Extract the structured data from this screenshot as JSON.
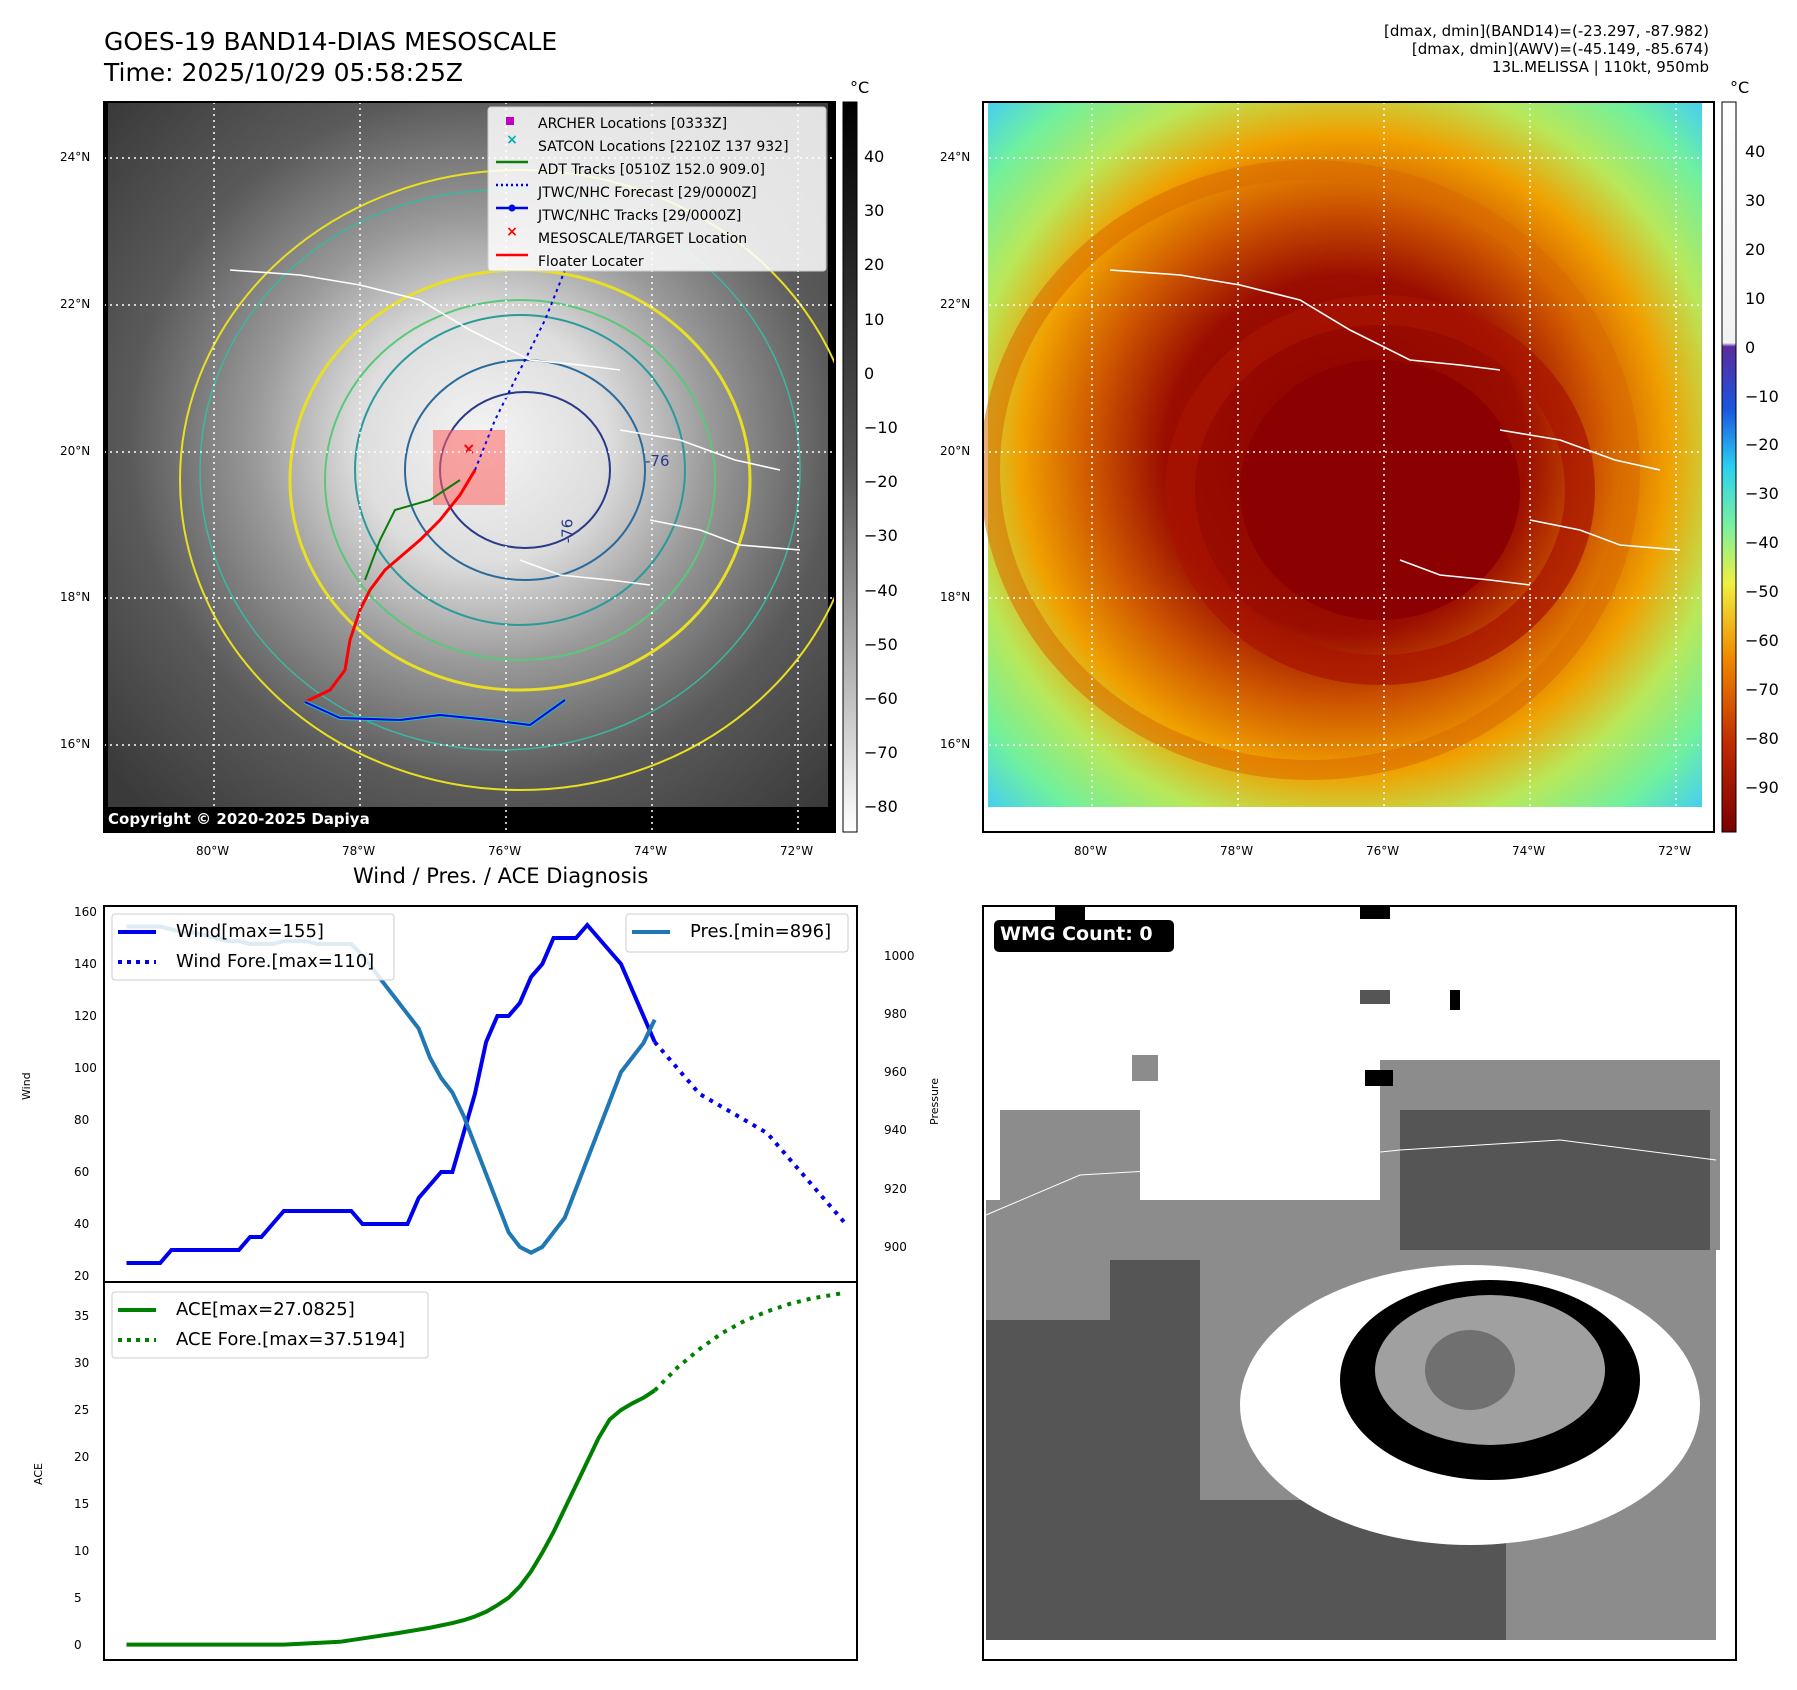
{
  "header": {
    "title_line1": "GOES-19 BAND14-DIAS MESOSCALE",
    "title_line2": "Time: 2025/10/29 05:58:25Z",
    "info_line1": "[dmax, dmin](BAND14)=(-23.297, -87.982)",
    "info_line2": "[dmax, dmin](AWV)=(-45.149, -85.674)",
    "info_line3": "13L.MELISSA | 110kt, 950mb"
  },
  "map": {
    "lat_labels": [
      "24°N",
      "22°N",
      "20°N",
      "18°N",
      "16°N"
    ],
    "lon_labels": [
      "80°W",
      "78°W",
      "76°W",
      "74°W",
      "72°W"
    ],
    "copyright": "Copyright © 2020-2025 Dapiya",
    "unit": "°C",
    "legend": [
      {
        "label": "ARCHER Locations [0333Z]",
        "marker": "square",
        "color": "#c000c0"
      },
      {
        "label": "SATCON Locations [2210Z 137 932]",
        "marker": "x",
        "color": "#00b0b0"
      },
      {
        "label": "ADT Tracks [0510Z 152.0 909.0]",
        "marker": "line",
        "color": "#0a7d0a"
      },
      {
        "label": "JTWC/NHC Forecast [29/0000Z]",
        "marker": "dotted",
        "color": "#0000ee"
      },
      {
        "label": "JTWC/NHC Tracks [29/0000Z]",
        "marker": "line-dot",
        "color": "#0000ee"
      },
      {
        "label": "MESOSCALE/TARGET Location",
        "marker": "x",
        "color": "#ff0000"
      },
      {
        "label": "Floater Locater",
        "marker": "line",
        "color": "#ff0000"
      }
    ],
    "gray_colorbar_ticks": [
      "40",
      "30",
      "20",
      "10",
      "0",
      "−10",
      "−20",
      "−30",
      "−40",
      "−50",
      "−60",
      "−70",
      "−80"
    ],
    "color_colorbar_ticks": [
      "40",
      "30",
      "20",
      "10",
      "0",
      "−10",
      "−20",
      "−30",
      "−40",
      "−50",
      "−60",
      "−70",
      "−80",
      "−90"
    ],
    "contour_labels": [
      "-76",
      "-76"
    ]
  },
  "diagnosis": {
    "title": "Wind / Pres. / ACE Diagnosis",
    "wmg_label": "WMG Count: 0",
    "colors": {
      "wind": "#0000ee",
      "pres": "#1f77b4",
      "ace": "#008000"
    }
  },
  "chart_data": [
    {
      "type": "line",
      "title": "Wind / Pres. / ACE Diagnosis",
      "ylabel": "Wind",
      "y2label": "Pressure",
      "ylim": [
        20,
        160
      ],
      "y2lim": [
        890,
        1015
      ],
      "xlim": [
        -1,
        66
      ],
      "yticks": [
        "160",
        "140",
        "120",
        "100",
        "80",
        "60",
        "40",
        "20"
      ],
      "y2ticks": [
        "1000",
        "980",
        "960",
        "940",
        "920",
        "900"
      ],
      "series": [
        {
          "name": "Wind[max=155]",
          "axis": "left",
          "style": "solid",
          "x": [
            1,
            4,
            5,
            7,
            8,
            9,
            10,
            11,
            12,
            13,
            14,
            15,
            16,
            17,
            18,
            19,
            20,
            21,
            22,
            23,
            24,
            25,
            26,
            27,
            28,
            29,
            30,
            31,
            32,
            33,
            34,
            35,
            36,
            37,
            38,
            39,
            40,
            41,
            42,
            43,
            44,
            45,
            46,
            47,
            48
          ],
          "values": [
            25,
            25,
            30,
            30,
            30,
            30,
            30,
            30,
            35,
            35,
            40,
            45,
            45,
            45,
            45,
            45,
            45,
            45,
            40,
            40,
            40,
            40,
            40,
            50,
            55,
            60,
            60,
            75,
            90,
            110,
            120,
            120,
            125,
            135,
            140,
            150,
            150,
            150,
            155,
            150,
            145,
            140,
            130,
            120,
            110
          ]
        },
        {
          "name": "Wind Fore.[max=110]",
          "axis": "left",
          "style": "dotted",
          "x": [
            48,
            50,
            52,
            54,
            56,
            58,
            60,
            62,
            64,
            65
          ],
          "values": [
            110,
            100,
            90,
            85,
            80,
            75,
            65,
            55,
            45,
            40
          ]
        },
        {
          "name": "Pres.[min=896]",
          "axis": "right",
          "style": "solid",
          "x": [
            1,
            2,
            3,
            4,
            5,
            6,
            7,
            8,
            9,
            10,
            11,
            12,
            13,
            14,
            15,
            16,
            17,
            18,
            19,
            20,
            21,
            22,
            23,
            24,
            25,
            26,
            27,
            28,
            29,
            30,
            31,
            32,
            33,
            34,
            35,
            36,
            37,
            38,
            39,
            40,
            41,
            42,
            43,
            44,
            45,
            46,
            47,
            48
          ],
          "values": [
            1010,
            1010,
            1010,
            1010,
            1009,
            1008,
            1008,
            1007,
            1006,
            1005,
            1005,
            1004,
            1004,
            1004,
            1005,
            1005,
            1005,
            1004,
            1004,
            1004,
            1004,
            1000,
            995,
            990,
            985,
            980,
            975,
            965,
            958,
            953,
            945,
            935,
            925,
            915,
            905,
            900,
            898,
            900,
            905,
            910,
            920,
            930,
            940,
            950,
            960,
            965,
            970,
            978
          ]
        }
      ]
    },
    {
      "type": "line",
      "ylabel": "ACE",
      "ylim": [
        -1,
        38
      ],
      "xlim": [
        -1,
        66
      ],
      "yticks": [
        "35",
        "30",
        "25",
        "20",
        "15",
        "10",
        "5",
        "0"
      ],
      "series": [
        {
          "name": "ACE[max=27.0825]",
          "style": "solid",
          "x": [
            1,
            5,
            10,
            15,
            20,
            25,
            28,
            30,
            31,
            32,
            33,
            34,
            35,
            36,
            37,
            38,
            39,
            40,
            41,
            42,
            43,
            44,
            45,
            46,
            47,
            48
          ],
          "values": [
            0,
            0,
            0,
            0,
            0.3,
            1.2,
            1.8,
            2.3,
            2.6,
            3.0,
            3.5,
            4.2,
            5.0,
            6.2,
            7.8,
            9.8,
            12.0,
            14.5,
            17.0,
            19.5,
            22.0,
            24.0,
            25.0,
            25.7,
            26.3,
            27.0825
          ]
        },
        {
          "name": "ACE Fore.[max=37.5194]",
          "style": "dotted",
          "x": [
            48,
            50,
            52,
            54,
            56,
            58,
            60,
            62,
            64,
            65
          ],
          "values": [
            27.0825,
            29.5,
            31.5,
            33.2,
            34.5,
            35.5,
            36.3,
            36.9,
            37.3,
            37.5194
          ]
        }
      ]
    }
  ]
}
